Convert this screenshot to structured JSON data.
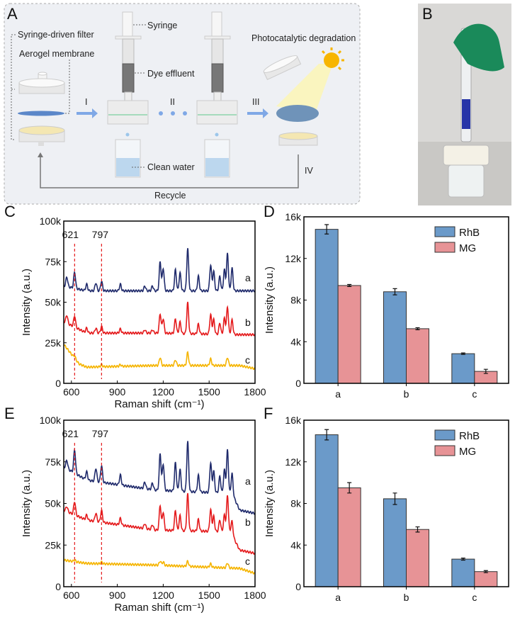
{
  "panels": {
    "a": "A",
    "b": "B",
    "c": "C",
    "d": "D",
    "e": "E",
    "f": "F"
  },
  "schematic": {
    "labels": {
      "filter": "Syringe-driven filter",
      "membrane": "Aerogel membrane",
      "syringe": "Syringe",
      "dye": "Dye effluent",
      "water": "Clean water",
      "photo": "Photocatalytic degradation",
      "recycle": "Recycle"
    },
    "steps": [
      "I",
      "II",
      "III",
      "IV"
    ],
    "colors": {
      "membrane": "#5b87c9",
      "arrow": "#7fa8e6",
      "sun": "#f7b500",
      "water": "#bcd7ee",
      "box_bg": "#eef0f4"
    }
  },
  "chart_data": [
    {
      "id": "C",
      "type": "line",
      "xlabel": "Raman shift (cm⁻¹)",
      "ylabel": "Intensity (a.u.)",
      "xlim": [
        550,
        1800
      ],
      "ylim": [
        0,
        100000
      ],
      "xticks": [
        "600",
        "900",
        "1200",
        "1500",
        "1800"
      ],
      "yticks": [
        "0",
        "25k",
        "50k",
        "75k",
        "100k"
      ],
      "markers": [
        {
          "x": 621,
          "label": "621"
        },
        {
          "x": 797,
          "label": "797"
        }
      ],
      "series": [
        {
          "name": "a",
          "color": "#1f2a6b",
          "baseline": [
            [
              550,
              60000
            ],
            [
              700,
              57000
            ],
            [
              1150,
              57000
            ],
            [
              1700,
              57000
            ],
            [
              1800,
              57000
            ]
          ],
          "peaks": [
            [
              570,
              6000
            ],
            [
              621,
              10000
            ],
            [
              700,
              4000
            ],
            [
              760,
              5000
            ],
            [
              797,
              6000
            ],
            [
              920,
              4000
            ],
            [
              1080,
              3000
            ],
            [
              1130,
              3000
            ],
            [
              1180,
              18000
            ],
            [
              1200,
              14000
            ],
            [
              1280,
              13000
            ],
            [
              1310,
              11000
            ],
            [
              1360,
              26000
            ],
            [
              1430,
              9000
            ],
            [
              1510,
              16000
            ],
            [
              1530,
              12000
            ],
            [
              1570,
              9000
            ],
            [
              1600,
              13000
            ],
            [
              1620,
              23000
            ],
            [
              1650,
              14000
            ]
          ]
        },
        {
          "name": "b",
          "color": "#e41a1c",
          "baseline": [
            [
              550,
              38000
            ],
            [
              700,
              31000
            ],
            [
              1150,
              31000
            ],
            [
              1700,
              30000
            ],
            [
              1800,
              30000
            ]
          ],
          "peaks": [
            [
              570,
              5000
            ],
            [
              621,
              7000
            ],
            [
              700,
              3000
            ],
            [
              760,
              3000
            ],
            [
              797,
              4000
            ],
            [
              920,
              2500
            ],
            [
              1080,
              2000
            ],
            [
              1130,
              2000
            ],
            [
              1180,
              12000
            ],
            [
              1200,
              9000
            ],
            [
              1280,
              9000
            ],
            [
              1310,
              7000
            ],
            [
              1360,
              19000
            ],
            [
              1430,
              6000
            ],
            [
              1510,
              12000
            ],
            [
              1530,
              9000
            ],
            [
              1570,
              7000
            ],
            [
              1600,
              10000
            ],
            [
              1620,
              17000
            ],
            [
              1650,
              9000
            ]
          ]
        },
        {
          "name": "c",
          "color": "#f5b400",
          "baseline": [
            [
              550,
              24000
            ],
            [
              650,
              12000
            ],
            [
              700,
              10000
            ],
            [
              1150,
              11000
            ],
            [
              1700,
              11000
            ],
            [
              1800,
              9000
            ]
          ],
          "peaks": [
            [
              621,
              1500
            ],
            [
              797,
              1200
            ],
            [
              920,
              1000
            ],
            [
              1180,
              5000
            ],
            [
              1280,
              3500
            ],
            [
              1360,
              8000
            ],
            [
              1510,
              4000
            ],
            [
              1620,
              5000
            ]
          ]
        }
      ]
    },
    {
      "id": "D",
      "type": "bar",
      "ylabel": "Intensity (a.u.)",
      "ylim": [
        0,
        16000
      ],
      "categories": [
        "a",
        "b",
        "c"
      ],
      "yticks": [
        "0",
        "4k",
        "8k",
        "12k",
        "16k"
      ],
      "legend": "top-right",
      "series": [
        {
          "name": "RhB",
          "color": "#6b9ac9",
          "values": [
            14800,
            8800,
            2850
          ],
          "errors": [
            450,
            300,
            70
          ]
        },
        {
          "name": "MG",
          "color": "#e79396",
          "values": [
            9400,
            5250,
            1150
          ],
          "errors": [
            100,
            100,
            200
          ]
        }
      ]
    },
    {
      "id": "E",
      "type": "line",
      "xlabel": "Raman shift (cm⁻¹)",
      "ylabel": "Intensity (a.u.)",
      "xlim": [
        550,
        1800
      ],
      "ylim": [
        0,
        100000
      ],
      "xticks": [
        "600",
        "900",
        "1200",
        "1500",
        "1800"
      ],
      "yticks": [
        "0",
        "25k",
        "50k",
        "75k",
        "100k"
      ],
      "markers": [
        {
          "x": 621,
          "label": "621"
        },
        {
          "x": 797,
          "label": "797"
        }
      ],
      "series": [
        {
          "name": "a",
          "color": "#1f2a6b",
          "baseline": [
            [
              550,
              72000
            ],
            [
              700,
              64000
            ],
            [
              1150,
              58000
            ],
            [
              1650,
              56000
            ],
            [
              1700,
              46000
            ],
            [
              1800,
              44000
            ]
          ],
          "peaks": [
            [
              570,
              5000
            ],
            [
              621,
              14000
            ],
            [
              700,
              5000
            ],
            [
              760,
              8000
            ],
            [
              797,
              10000
            ],
            [
              920,
              6000
            ],
            [
              1080,
              4000
            ],
            [
              1130,
              4000
            ],
            [
              1180,
              22000
            ],
            [
              1200,
              16000
            ],
            [
              1280,
              17000
            ],
            [
              1310,
              13000
            ],
            [
              1360,
              30000
            ],
            [
              1430,
              10000
            ],
            [
              1510,
              18000
            ],
            [
              1530,
              13000
            ],
            [
              1570,
              10000
            ],
            [
              1600,
              14000
            ],
            [
              1620,
              26000
            ],
            [
              1650,
              12000
            ]
          ]
        },
        {
          "name": "b",
          "color": "#e41a1c",
          "baseline": [
            [
              550,
              46000
            ],
            [
              700,
              40000
            ],
            [
              1150,
              34000
            ],
            [
              1640,
              33000
            ],
            [
              1700,
              22000
            ],
            [
              1800,
              20000
            ]
          ],
          "peaks": [
            [
              570,
              3000
            ],
            [
              621,
              8000
            ],
            [
              700,
              3000
            ],
            [
              760,
              5000
            ],
            [
              797,
              7000
            ],
            [
              920,
              4000
            ],
            [
              1080,
              3000
            ],
            [
              1130,
              3000
            ],
            [
              1180,
              15000
            ],
            [
              1200,
              11000
            ],
            [
              1280,
              12000
            ],
            [
              1310,
              9000
            ],
            [
              1360,
              22000
            ],
            [
              1430,
              7000
            ],
            [
              1510,
              13000
            ],
            [
              1530,
              9000
            ],
            [
              1570,
              7000
            ],
            [
              1600,
              10000
            ],
            [
              1620,
              22000
            ],
            [
              1650,
              8000
            ]
          ]
        },
        {
          "name": "c",
          "color": "#f5b400",
          "baseline": [
            [
              550,
              16000
            ],
            [
              700,
              14000
            ],
            [
              1150,
              13000
            ],
            [
              1700,
              11000
            ],
            [
              1800,
              8000
            ]
          ],
          "peaks": [
            [
              621,
              1000
            ],
            [
              797,
              1000
            ],
            [
              1180,
              2500
            ],
            [
              1200,
              2000
            ],
            [
              1360,
              3000
            ],
            [
              1510,
              2000
            ],
            [
              1620,
              3000
            ]
          ]
        }
      ]
    },
    {
      "id": "F",
      "type": "bar",
      "ylabel": "Intensity (a.u.)",
      "ylim": [
        0,
        16000
      ],
      "categories": [
        "a",
        "b",
        "c"
      ],
      "yticks": [
        "0",
        "4k",
        "8k",
        "12k",
        "16k"
      ],
      "legend": "top-right",
      "series": [
        {
          "name": "RhB",
          "color": "#6b9ac9",
          "values": [
            14600,
            8450,
            2650
          ],
          "errors": [
            500,
            550,
            100
          ]
        },
        {
          "name": "MG",
          "color": "#e79396",
          "values": [
            9500,
            5500,
            1450
          ],
          "errors": [
            500,
            250,
            100
          ]
        }
      ]
    }
  ]
}
